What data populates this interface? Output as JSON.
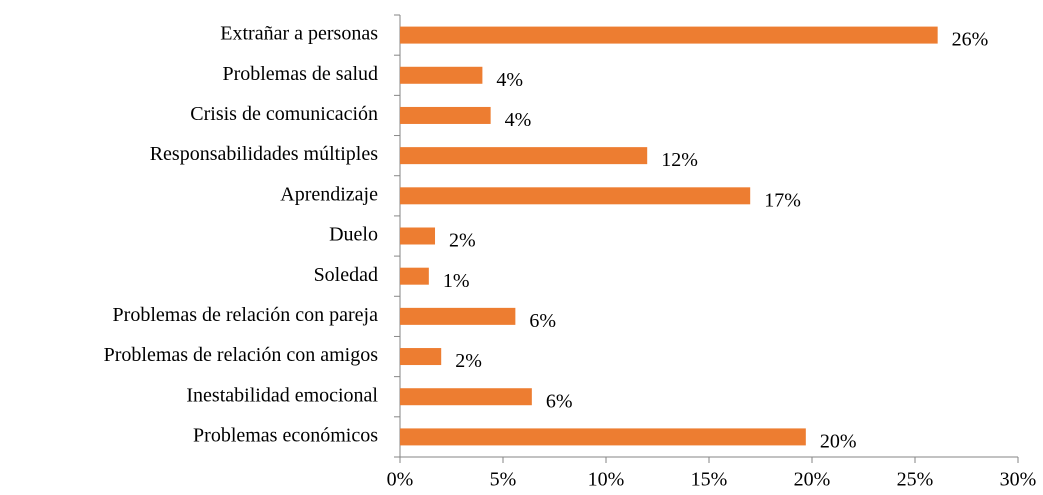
{
  "chart_data": {
    "type": "hbar",
    "categories": [
      "Extrañar a personas",
      "Problemas de salud",
      "Crisis de comunicación",
      "Responsabilidades múltiples",
      "Aprendizaje",
      "Duelo",
      "Soledad",
      "Problemas de relación con pareja",
      "Problemas de relación con amigos",
      "Inestabilidad emocional",
      "Problemas económicos"
    ],
    "values": [
      26.1,
      4.0,
      4.4,
      12.0,
      17.0,
      1.7,
      1.4,
      5.6,
      2.0,
      6.4,
      19.7
    ],
    "value_labels": [
      "26%",
      "4%",
      "4%",
      "12%",
      "17%",
      "2%",
      "1%",
      "6%",
      "2%",
      "6%",
      "20%"
    ],
    "color": "#ed7d31",
    "xlim": [
      0,
      30
    ],
    "xticks": [
      {
        "value": 0,
        "label": "0%"
      },
      {
        "value": 5,
        "label": "5%"
      },
      {
        "value": 10,
        "label": "10%"
      },
      {
        "value": 15,
        "label": "15%"
      },
      {
        "value": 20,
        "label": "20%"
      },
      {
        "value": 25,
        "label": "25%"
      },
      {
        "value": 30,
        "label": "30%"
      }
    ],
    "grid": false
  }
}
